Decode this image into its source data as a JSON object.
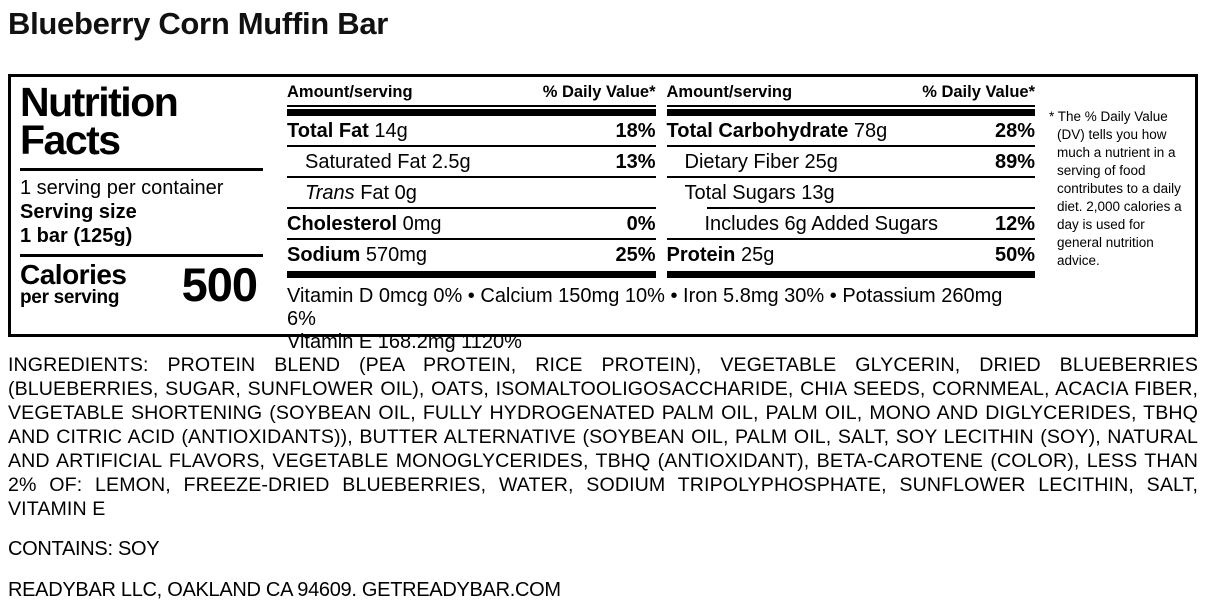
{
  "colors": {
    "text": "#000000",
    "background": "#ffffff"
  },
  "page": {
    "title": "Blueberry Corn Muffin Bar"
  },
  "panel": {
    "nf_title_line1": "Nutrition",
    "nf_title_line2": "Facts",
    "servings_per_container": "1 serving per container",
    "serving_size_label": "Serving size",
    "serving_size_value": "1 bar (125g)",
    "calories_label": "Calories",
    "calories_sublabel": "per serving",
    "calories_value": "500",
    "header": {
      "amount": "Amount/serving",
      "daily_value": "% Daily Value*"
    },
    "fat_col": {
      "rows": [
        {
          "bold": "Total Fat",
          "text": " 14g",
          "dv": "18%"
        },
        {
          "bold": "",
          "text": "Saturated Fat 2.5g",
          "dv": "13%"
        },
        {
          "italic": "Trans",
          "text": " Fat 0g",
          "dv": ""
        },
        {
          "bold": "Cholesterol",
          "text": " 0mg",
          "dv": "0%"
        },
        {
          "bold": "Sodium",
          "text": " 570mg",
          "dv": "25%"
        }
      ]
    },
    "carb_col": {
      "rows": [
        {
          "bold": "Total Carbohydrate",
          "text": " 78g",
          "dv": "28%"
        },
        {
          "bold": "",
          "text": "Dietary Fiber 25g",
          "dv": "89%"
        },
        {
          "bold": "",
          "text": "Total Sugars 13g",
          "dv": ""
        },
        {
          "bold": "",
          "text": "Includes 6g Added Sugars",
          "dv": "12%"
        },
        {
          "bold": "Protein",
          "text": " 25g",
          "dv": "50%"
        }
      ]
    },
    "vitamins_line1": "Vitamin D 0mcg 0% • Calcium 150mg 10% • Iron 5.8mg 30% • Potassium 260mg 6%",
    "vitamins_line2": "Vitamin E 168.2mg 1120%",
    "footnote": "* The % Daily Value (DV) tells you how much a nutrient in a serving of food contributes to a daily diet. 2,000 calories a day is used for general nutrition advice."
  },
  "ingredients": "INGREDIENTS: PROTEIN BLEND (PEA PROTEIN, RICE PROTEIN), VEGETABLE GLYCERIN, DRIED BLUEBERRIES (BLUEBERRIES, SUGAR, SUNFLOWER OIL), OATS, ISOMALTOOLIGOSACCHARIDE, CHIA SEEDS, CORNMEAL, ACACIA FIBER, VEGETABLE SHORTENING (SOYBEAN OIL, FULLY HYDROGENATED PALM OIL, PALM OIL, MONO AND DIGLYCERIDES, TBHQ AND CITRIC ACID (ANTIOXIDANTS)), BUTTER ALTERNATIVE (SOYBEAN OIL, PALM OIL, SALT, SOY LECITHIN (SOY), NATURAL AND ARTIFICIAL FLAVORS, VEGETABLE MONOGLYCERIDES, TBHQ (ANTIOXIDANT), BETA-CAROTENE (COLOR), LESS THAN 2% OF: LEMON, FREEZE-DRIED BLUEBERRIES, WATER, SODIUM TRIPOLYPHOSPHATE, SUNFLOWER LECITHIN, SALT, VITAMIN E",
  "contains": "CONTAINS: SOY",
  "manufacturer": "READYBAR LLC, OAKLAND CA 94609. GETREADYBAR.COM"
}
